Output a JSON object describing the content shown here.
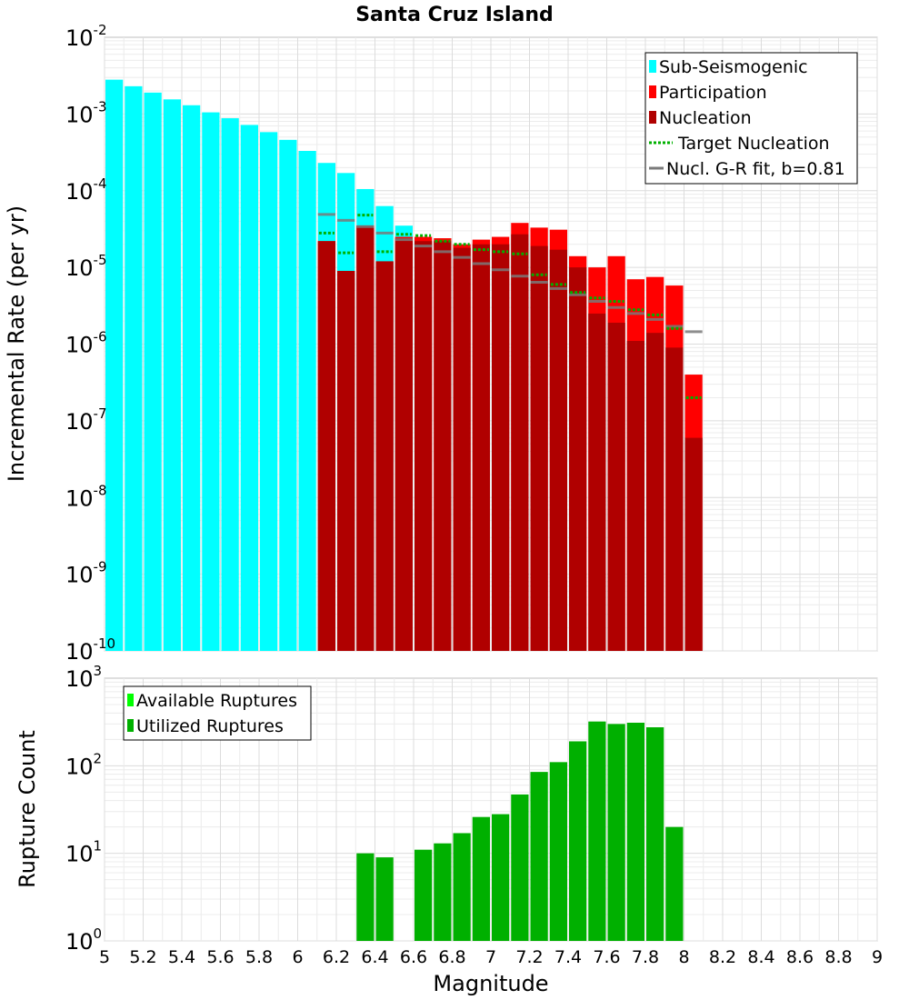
{
  "chart_data": [
    {
      "type": "bar",
      "title": "Santa Cruz Island",
      "xlabel": "",
      "ylabel": "Incremental Rate (per yr)",
      "yscale": "log",
      "ylim": [
        1e-10,
        0.01
      ],
      "xlim": [
        5,
        9
      ],
      "bin_width": 0.1,
      "legend_position": "top-right",
      "colors": {
        "sub_seismogenic": "#00ffff",
        "participation": "#ff0000",
        "nucleation": "#b00000",
        "target_nucleation": "#00b000",
        "gr_fit": "#7a7a7a"
      },
      "legend": [
        "Sub-Seismogenic",
        "Participation",
        "Nucleation",
        "Target Nucleation",
        "Nucl. G-R fit, b=0.81"
      ],
      "series": [
        {
          "name": "Sub-Seismogenic",
          "x": [
            5.05,
            5.15,
            5.25,
            5.35,
            5.45,
            5.55,
            5.65,
            5.75,
            5.85,
            5.95,
            6.05,
            6.15,
            6.25,
            6.35,
            6.45,
            6.55
          ],
          "values": [
            0.0028,
            0.0023,
            0.0019,
            0.00155,
            0.0013,
            0.00105,
            0.00088,
            0.00072,
            0.00058,
            0.00046,
            0.00033,
            0.00023,
            0.00017,
            0.000105,
            6.3e-05,
            3.5e-05
          ]
        },
        {
          "name": "Participation",
          "x": [
            6.15,
            6.25,
            6.35,
            6.45,
            6.55,
            6.65,
            6.75,
            6.85,
            6.95,
            7.05,
            7.15,
            7.25,
            7.35,
            7.45,
            7.55,
            7.65,
            7.75,
            7.85,
            7.95,
            8.05
          ],
          "values": [
            2.2e-05,
            9e-06,
            3.5e-05,
            1.2e-05,
            2.5e-05,
            2.5e-05,
            2.4e-05,
            2e-05,
            2.3e-05,
            2.5e-05,
            3.8e-05,
            3.3e-05,
            3.1e-05,
            1.4e-05,
            1e-05,
            1.4e-05,
            7e-06,
            7.5e-06,
            5.8e-06,
            4e-07
          ]
        },
        {
          "name": "Nucleation",
          "x": [
            6.15,
            6.25,
            6.35,
            6.45,
            6.55,
            6.65,
            6.75,
            6.85,
            6.95,
            7.05,
            7.15,
            7.25,
            7.35,
            7.45,
            7.55,
            7.65,
            7.75,
            7.85,
            7.95,
            8.05
          ],
          "values": [
            2.2e-05,
            9e-06,
            3.5e-05,
            1.2e-05,
            2.4e-05,
            2.2e-05,
            2.2e-05,
            1.8e-05,
            2e-05,
            2e-05,
            2.7e-05,
            1.9e-05,
            1.7e-05,
            1e-05,
            2.5e-06,
            1.9e-06,
            1.1e-06,
            1.4e-06,
            9e-07,
            6e-08
          ]
        },
        {
          "name": "Target Nucleation",
          "x": [
            6.15,
            6.25,
            6.35,
            6.45,
            6.55,
            6.65,
            6.75,
            6.85,
            6.95,
            7.05,
            7.15,
            7.25,
            7.35,
            7.45,
            7.55,
            7.65,
            7.75,
            7.85,
            7.95,
            8.05
          ],
          "values": [
            2.8e-05,
            1.55e-05,
            4.8e-05,
            1.6e-05,
            2.7e-05,
            2.6e-05,
            2.2e-05,
            2e-05,
            1.7e-05,
            1.6e-05,
            1.5e-05,
            8e-06,
            6e-06,
            4.7e-06,
            4e-06,
            3.6e-06,
            2.8e-06,
            2.4e-06,
            1.6e-06,
            2e-07
          ]
        },
        {
          "name": "Nucl. G-R fit, b=0.81",
          "x": [
            6.15,
            6.25,
            6.35,
            6.45,
            6.55,
            6.65,
            6.75,
            6.85,
            6.95,
            7.05,
            7.15,
            7.25,
            7.35,
            7.45,
            7.55,
            7.65,
            7.75,
            7.85,
            7.95,
            8.05
          ],
          "values": [
            4.9e-05,
            4.1e-05,
            3.4e-05,
            2.8e-05,
            2.3e-05,
            1.9e-05,
            1.6e-05,
            1.35e-05,
            1.12e-05,
            9.3e-06,
            7.7e-06,
            6.4e-06,
            5.3e-06,
            4.4e-06,
            3.6e-06,
            3e-06,
            2.5e-06,
            2.1e-06,
            1.7e-06,
            1.45e-06
          ]
        }
      ]
    },
    {
      "type": "bar",
      "title": "",
      "xlabel": "Magnitude",
      "ylabel": "Rupture Count",
      "yscale": "log",
      "ylim": [
        1,
        1000
      ],
      "xlim": [
        5,
        9
      ],
      "bin_width": 0.1,
      "legend_position": "top-left",
      "colors": {
        "available": "#00ff00",
        "utilized": "#00b000"
      },
      "legend": [
        "Available Ruptures",
        "Utilized Ruptures"
      ],
      "series": [
        {
          "name": "Utilized Ruptures",
          "x": [
            6.35,
            6.45,
            6.55,
            6.65,
            6.75,
            6.85,
            6.95,
            7.05,
            7.15,
            7.25,
            7.35,
            7.45,
            7.55,
            7.65,
            7.75,
            7.85,
            7.95
          ],
          "values": [
            10,
            9,
            1,
            11,
            13,
            17,
            26,
            28,
            47,
            85,
            110,
            190,
            320,
            300,
            310,
            275,
            20
          ]
        }
      ]
    }
  ],
  "x_ticks": [
    "5",
    "5.2",
    "5.4",
    "5.6",
    "5.8",
    "6",
    "6.2",
    "6.4",
    "6.6",
    "6.8",
    "7",
    "7.2",
    "7.4",
    "7.6",
    "7.8",
    "8",
    "8.2",
    "8.4",
    "8.6",
    "8.8",
    "9"
  ],
  "top_y_ticks": [
    {
      "base": "10",
      "exp": "-2",
      "value": 0.01
    },
    {
      "base": "10",
      "exp": "-3",
      "value": 0.001
    },
    {
      "base": "10",
      "exp": "-4",
      "value": 0.0001
    },
    {
      "base": "10",
      "exp": "-5",
      "value": 1e-05
    },
    {
      "base": "10",
      "exp": "-6",
      "value": 1e-06
    },
    {
      "base": "10",
      "exp": "-7",
      "value": 1e-07
    },
    {
      "base": "10",
      "exp": "-8",
      "value": 1e-08
    },
    {
      "base": "10",
      "exp": "-9",
      "value": 1e-09
    },
    {
      "base": "10",
      "exp": "-10",
      "value": 1e-10
    }
  ],
  "bottom_y_ticks": [
    {
      "base": "10",
      "exp": "3",
      "value": 1000
    },
    {
      "base": "10",
      "exp": "2",
      "value": 100
    },
    {
      "base": "10",
      "exp": "1",
      "value": 10
    },
    {
      "base": "10",
      "exp": "0",
      "value": 1
    }
  ]
}
